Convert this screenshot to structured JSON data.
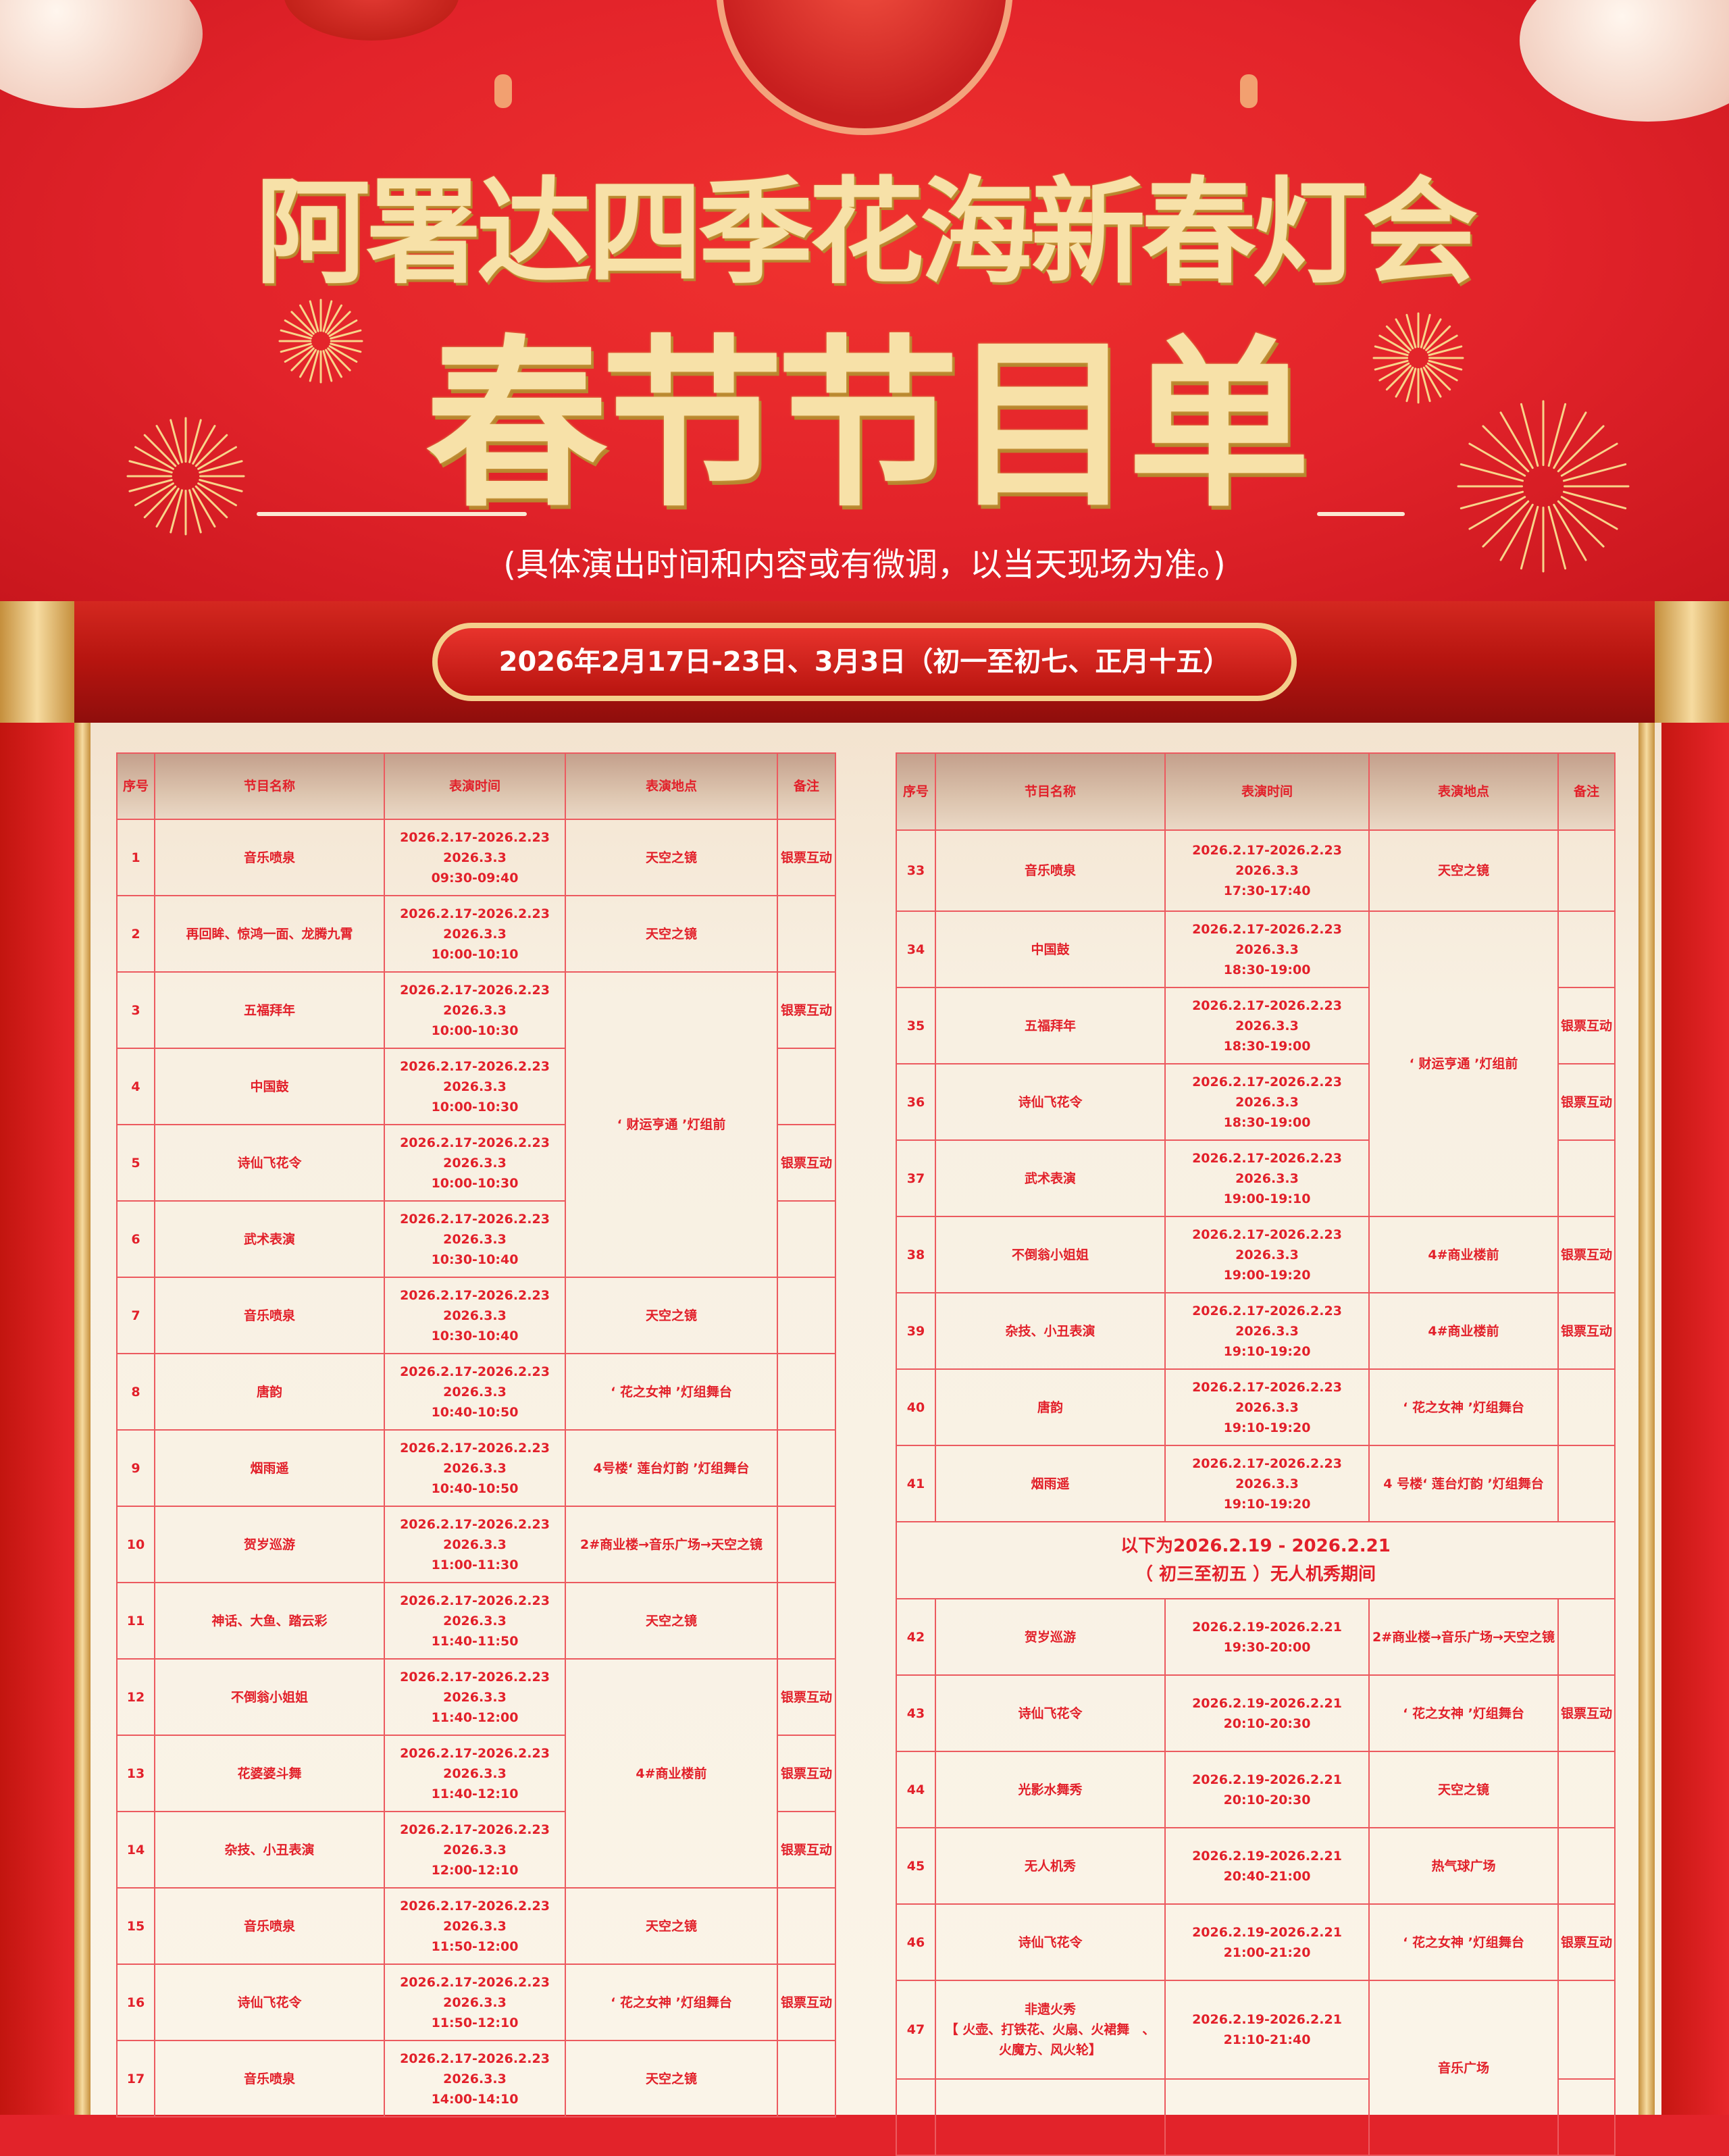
{
  "header": {
    "title_line1": "阿署达四季花海新春灯会",
    "title_line2": "春节节目单",
    "subtitle": "(具体演出时间和内容或有微调，以当天现场为准。)"
  },
  "banner": {
    "dates": "2026年2月17日-23日、3月3日（初一至初七、正月十五）"
  },
  "colors": {
    "red": "#e2232a",
    "gold": "#f7e1a8",
    "paper": "#f8f0e2",
    "text": "#e2202a"
  },
  "columns": [
    "序号",
    "节目名称",
    "表演时间",
    "表演地点",
    "备注"
  ],
  "left_table": [
    {
      "no": "1",
      "name": "音乐喷泉",
      "time": [
        "2026.2.17-2026.2.23",
        "2026.3.3",
        "09:30-09:40"
      ],
      "loc": "天空之镜",
      "note": "银票互动"
    },
    {
      "no": "2",
      "name": "再回眸、惊鸿一面、龙腾九霄",
      "time": [
        "2026.2.17-2026.2.23",
        "2026.3.3",
        "10:00-10:10"
      ],
      "loc": "天空之镜",
      "note": ""
    },
    {
      "no": "3",
      "name": "五福拜年",
      "time": [
        "2026.2.17-2026.2.23",
        "2026.3.3",
        "10:00-10:30"
      ],
      "loc": "‘ 财运亨通 ’灯组前",
      "span": 4,
      "note": "银票互动"
    },
    {
      "no": "4",
      "name": "中国鼓",
      "time": [
        "2026.2.17-2026.2.23",
        "2026.3.3",
        "10:00-10:30"
      ],
      "note": ""
    },
    {
      "no": "5",
      "name": "诗仙飞花令",
      "time": [
        "2026.2.17-2026.2.23",
        "2026.3.3",
        "10:00-10:30"
      ],
      "note": "银票互动"
    },
    {
      "no": "6",
      "name": "武术表演",
      "time": [
        "2026.2.17-2026.2.23",
        "2026.3.3",
        "10:30-10:40"
      ],
      "note": ""
    },
    {
      "no": "7",
      "name": "音乐喷泉",
      "time": [
        "2026.2.17-2026.2.23",
        "2026.3.3",
        "10:30-10:40"
      ],
      "loc": "天空之镜",
      "note": ""
    },
    {
      "no": "8",
      "name": "唐韵",
      "time": [
        "2026.2.17-2026.2.23",
        "2026.3.3",
        "10:40-10:50"
      ],
      "loc": "‘ 花之女神 ’灯组舞台",
      "note": ""
    },
    {
      "no": "9",
      "name": "烟雨遥",
      "time": [
        "2026.2.17-2026.2.23",
        "2026.3.3",
        "10:40-10:50"
      ],
      "loc": "4号楼‘ 莲台灯韵 ’灯组舞台",
      "note": ""
    },
    {
      "no": "10",
      "name": "贺岁巡游",
      "time": [
        "2026.2.17-2026.2.23",
        "2026.3.3",
        "11:00-11:30"
      ],
      "loc": "2#商业楼→音乐广场→天空之镜",
      "note": ""
    },
    {
      "no": "11",
      "name": "神话、大鱼、踏云彩",
      "time": [
        "2026.2.17-2026.2.23",
        "2026.3.3",
        "11:40-11:50"
      ],
      "loc": "天空之镜",
      "note": ""
    },
    {
      "no": "12",
      "name": "不倒翁小姐姐",
      "time": [
        "2026.2.17-2026.2.23",
        "2026.3.3",
        "11:40-12:00"
      ],
      "loc": "4#商业楼前",
      "span": 3,
      "note": "银票互动"
    },
    {
      "no": "13",
      "name": "花婆婆斗舞",
      "time": [
        "2026.2.17-2026.2.23",
        "2026.3.3",
        "11:40-12:10"
      ],
      "note": "银票互动"
    },
    {
      "no": "14",
      "name": "杂技、小丑表演",
      "time": [
        "2026.2.17-2026.2.23",
        "2026.3.3",
        "12:00-12:10"
      ],
      "note": "银票互动"
    },
    {
      "no": "15",
      "name": "音乐喷泉",
      "time": [
        "2026.2.17-2026.2.23",
        "2026.3.3",
        "11:50-12:00"
      ],
      "loc": "天空之镜",
      "note": ""
    },
    {
      "no": "16",
      "name": "诗仙飞花令",
      "time": [
        "2026.2.17-2026.2.23",
        "2026.3.3",
        "11:50-12:10"
      ],
      "loc": "‘ 花之女神 ’灯组舞台",
      "note": "银票互动"
    },
    {
      "no": "17",
      "name": "音乐喷泉",
      "time": [
        "2026.2.17-2026.2.23",
        "2026.3.3",
        "14:00-14:10"
      ],
      "loc": "天空之镜",
      "note": ""
    }
  ],
  "right_table": [
    {
      "no": "33",
      "name": "音乐喷泉",
      "time": [
        "2026.2.17-2026.2.23",
        "2026.3.3",
        "17:30-17:40"
      ],
      "loc": "天空之镜",
      "note": ""
    },
    {
      "no": "34",
      "name": "中国鼓",
      "time": [
        "2026.2.17-2026.2.23",
        "2026.3.3",
        "18:30-19:00"
      ],
      "loc": "‘ 财运亨通 ’灯组前",
      "span": 4,
      "note": ""
    },
    {
      "no": "35",
      "name": "五福拜年",
      "time": [
        "2026.2.17-2026.2.23",
        "2026.3.3",
        "18:30-19:00"
      ],
      "note": "银票互动"
    },
    {
      "no": "36",
      "name": "诗仙飞花令",
      "time": [
        "2026.2.17-2026.2.23",
        "2026.3.3",
        "18:30-19:00"
      ],
      "note": "银票互动"
    },
    {
      "no": "37",
      "name": "武术表演",
      "time": [
        "2026.2.17-2026.2.23",
        "2026.3.3",
        "19:00-19:10"
      ],
      "note": ""
    },
    {
      "no": "38",
      "name": "不倒翁小姐姐",
      "time": [
        "2026.2.17-2026.2.23",
        "2026.3.3",
        "19:00-19:20"
      ],
      "loc": "4#商业楼前",
      "note": "银票互动"
    },
    {
      "no": "39",
      "name": "杂技、小丑表演",
      "time": [
        "2026.2.17-2026.2.23",
        "2026.3.3",
        "19:10-19:20"
      ],
      "loc": "4#商业楼前",
      "note": "银票互动"
    },
    {
      "no": "40",
      "name": "唐韵",
      "time": [
        "2026.2.17-2026.2.23",
        "2026.3.3",
        "19:10-19:20"
      ],
      "loc": "‘ 花之女神 ’灯组舞台",
      "note": ""
    },
    {
      "no": "41",
      "name": "烟雨遥",
      "time": [
        "2026.2.17-2026.2.23",
        "2026.3.3",
        "19:10-19:20"
      ],
      "loc": "4 号楼‘ 莲台灯韵 ’灯组舞台",
      "note": ""
    },
    {
      "section": [
        "以下为2026.2.19 - 2026.2.21",
        "（ 初三至初五 ）无人机秀期间"
      ]
    },
    {
      "no": "42",
      "name": "贺岁巡游",
      "time": [
        "2026.2.19-2026.2.21",
        "19:30-20:00"
      ],
      "loc": "2#商业楼→音乐广场→天空之镜",
      "note": ""
    },
    {
      "no": "43",
      "name": "诗仙飞花令",
      "time": [
        "2026.2.19-2026.2.21",
        "20:10-20:30"
      ],
      "loc": "‘ 花之女神 ’灯组舞台",
      "note": "银票互动"
    },
    {
      "no": "44",
      "name": "光影水舞秀",
      "time": [
        "2026.2.19-2026.2.21",
        "20:10-20:30"
      ],
      "loc": "天空之镜",
      "note": ""
    },
    {
      "no": "45",
      "name": "无人机秀",
      "time": [
        "2026.2.19-2026.2.21",
        "20:40-21:00"
      ],
      "loc": "热气球广场",
      "note": ""
    },
    {
      "no": "46",
      "name": "诗仙飞花令",
      "time": [
        "2026.2.19-2026.2.21",
        "21:00-21:20"
      ],
      "loc": "‘ 花之女神 ’灯组舞台",
      "note": "银票互动"
    },
    {
      "no": "47",
      "name": "非遗火秀\n【 火壶、打铁花、火扇、火裙舞　、\n火魔方、风火轮】",
      "time": [
        "2026.2.19-2026.2.21",
        "21:10-21:40"
      ],
      "loc": "音乐广场",
      "span": 2,
      "note": ""
    },
    {
      "no": "",
      "name": "",
      "time": [],
      "note": ""
    }
  ]
}
